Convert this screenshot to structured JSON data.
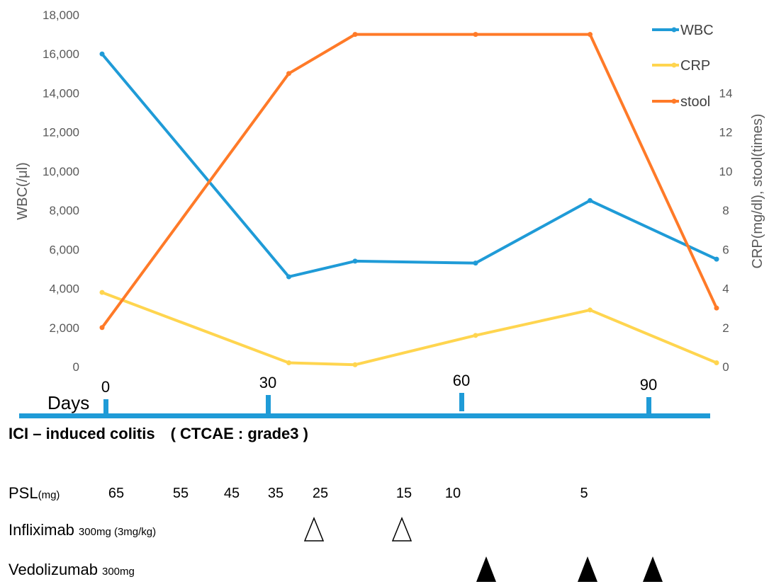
{
  "chart_data": {
    "type": "line",
    "xlabel": "Days",
    "ylabel_left": "WBC(/μl)",
    "ylabel_right": "CRP(mg/dl), stool(times)",
    "ylim_left": [
      0,
      18000
    ],
    "ylim_right": [
      0,
      18
    ],
    "grid": false,
    "legend_position": "top-right",
    "x_ticks": [
      0,
      30,
      60,
      90
    ],
    "y_left_ticks": [
      "0",
      "2,000",
      "4,000",
      "6,000",
      "8,000",
      "10,000",
      "12,000",
      "14,000",
      "16,000",
      "18,000"
    ],
    "y_right_ticks": [
      "0",
      "2",
      "4",
      "6",
      "8",
      "10",
      "12",
      "14"
    ],
    "series": [
      {
        "name": "WBC",
        "axis": "left",
        "color": "#1f9bd7",
        "x": [
          0,
          31,
          42,
          62,
          81,
          102
        ],
        "values": [
          16000,
          4600,
          5400,
          5300,
          8500,
          5500
        ]
      },
      {
        "name": "CRP",
        "axis": "right",
        "color": "#ffd54f",
        "x": [
          0,
          31,
          42,
          62,
          81,
          102
        ],
        "values": [
          3.8,
          0.2,
          0.1,
          1.6,
          2.9,
          0.2
        ]
      },
      {
        "name": "stool",
        "axis": "right",
        "color": "#ff7a28",
        "x": [
          0,
          31,
          42,
          62,
          81,
          102
        ],
        "values": [
          2,
          15,
          17,
          17,
          17,
          3
        ]
      }
    ]
  },
  "timeline": {
    "days_label": "Days",
    "colitis_label": "ICI – induced colitis　( CTCAE : grade3 )",
    "psl_label": "PSL",
    "psl_unit": "(mg)",
    "psl_values": [
      "65",
      "55",
      "45",
      "35",
      "25",
      "15",
      "10",
      "5"
    ],
    "infliximab_label": "Infliximab",
    "infliximab_unit": "300mg (3mg/kg)",
    "vedolizumab_label": "Vedolizumab",
    "vedolizumab_unit": "300mg",
    "bar_color": "#1f9bd7"
  }
}
